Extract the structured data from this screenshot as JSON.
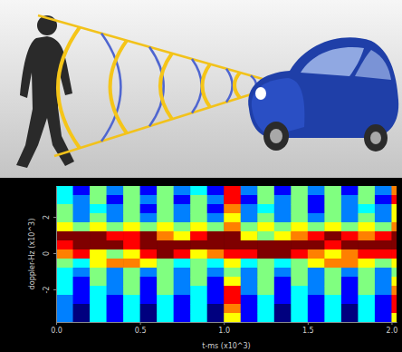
{
  "chart_data": {
    "type": "heatmap",
    "xlabel": "t-ms (x10^3)",
    "ylabel": "doppler-Hz (x10^3)",
    "xlim": [
      0,
      2.03
    ],
    "ylim": [
      -3.8,
      3.7
    ],
    "xticks": [
      {
        "value": 0,
        "label": "0.0"
      },
      {
        "value": 0.5,
        "label": "0.5"
      },
      {
        "value": 1,
        "label": "1.0"
      },
      {
        "value": 1.5,
        "label": "1.5"
      },
      {
        "value": 2,
        "label": "2.0"
      }
    ],
    "yticks": [
      -2,
      0,
      2
    ],
    "x": [
      0.05,
      0.15,
      0.25,
      0.35,
      0.45,
      0.55,
      0.65,
      0.75,
      0.85,
      0.95,
      1.05,
      1.15,
      1.25,
      1.35,
      1.45,
      1.55,
      1.65,
      1.75,
      1.85,
      1.95,
      2.05
    ],
    "y": [
      3.45,
      2.95,
      2.45,
      1.95,
      1.45,
      0.95,
      0.45,
      -0.05,
      -0.55,
      -1.05,
      -1.55,
      -2.05,
      -2.55,
      -3.05,
      -3.55
    ],
    "cells": [
      [
        4,
        2,
        5,
        3,
        5,
        2,
        5,
        3,
        4,
        2,
        8,
        3,
        5,
        2,
        5,
        3,
        5,
        2,
        5,
        3,
        7
      ],
      [
        4,
        3,
        5,
        2,
        5,
        3,
        5,
        2,
        5,
        3,
        8,
        2,
        5,
        3,
        5,
        2,
        5,
        3,
        5,
        2,
        8
      ],
      [
        5,
        3,
        4,
        3,
        5,
        2,
        5,
        3,
        5,
        2,
        7,
        3,
        4,
        3,
        5,
        2,
        5,
        3,
        4,
        3,
        6
      ],
      [
        5,
        3,
        5,
        3,
        5,
        3,
        5,
        3,
        5,
        3,
        6,
        3,
        5,
        3,
        5,
        3,
        5,
        3,
        5,
        3,
        6
      ],
      [
        6,
        5,
        6,
        5,
        6,
        5,
        6,
        5,
        6,
        5,
        7,
        5,
        6,
        5,
        6,
        5,
        6,
        5,
        6,
        5,
        7
      ],
      [
        9,
        9,
        9,
        8,
        8,
        9,
        7,
        6,
        8,
        9,
        9,
        6,
        5,
        6,
        7,
        8,
        9,
        8,
        7,
        8,
        9
      ],
      [
        8,
        9,
        9,
        9,
        8,
        9,
        9,
        9,
        9,
        9,
        9,
        9,
        9,
        9,
        9,
        9,
        8,
        9,
        9,
        9,
        9
      ],
      [
        7,
        8,
        6,
        5,
        6,
        8,
        9,
        8,
        6,
        7,
        8,
        8,
        9,
        9,
        8,
        7,
        6,
        7,
        8,
        8,
        8
      ],
      [
        5,
        4,
        6,
        7,
        7,
        6,
        5,
        4,
        5,
        4,
        6,
        4,
        5,
        4,
        5,
        6,
        7,
        7,
        6,
        5,
        6
      ],
      [
        4,
        3,
        5,
        3,
        5,
        3,
        5,
        3,
        5,
        3,
        5,
        3,
        5,
        3,
        5,
        3,
        5,
        3,
        5,
        3,
        5
      ],
      [
        4,
        2,
        5,
        3,
        5,
        2,
        5,
        3,
        5,
        2,
        6,
        3,
        5,
        2,
        5,
        3,
        5,
        2,
        5,
        3,
        6
      ],
      [
        4,
        2,
        4,
        3,
        5,
        2,
        5,
        3,
        4,
        2,
        8,
        3,
        5,
        2,
        4,
        3,
        5,
        2,
        5,
        3,
        7
      ],
      [
        3,
        2,
        4,
        2,
        4,
        2,
        4,
        2,
        4,
        2,
        8,
        2,
        4,
        2,
        4,
        2,
        4,
        2,
        4,
        2,
        8
      ],
      [
        3,
        1,
        4,
        2,
        4,
        1,
        4,
        2,
        4,
        1,
        7,
        2,
        4,
        1,
        4,
        2,
        4,
        1,
        4,
        2,
        8
      ],
      [
        3,
        1,
        4,
        2,
        4,
        1,
        4,
        2,
        4,
        1,
        6,
        2,
        4,
        1,
        4,
        2,
        4,
        1,
        4,
        2,
        6
      ]
    ]
  }
}
